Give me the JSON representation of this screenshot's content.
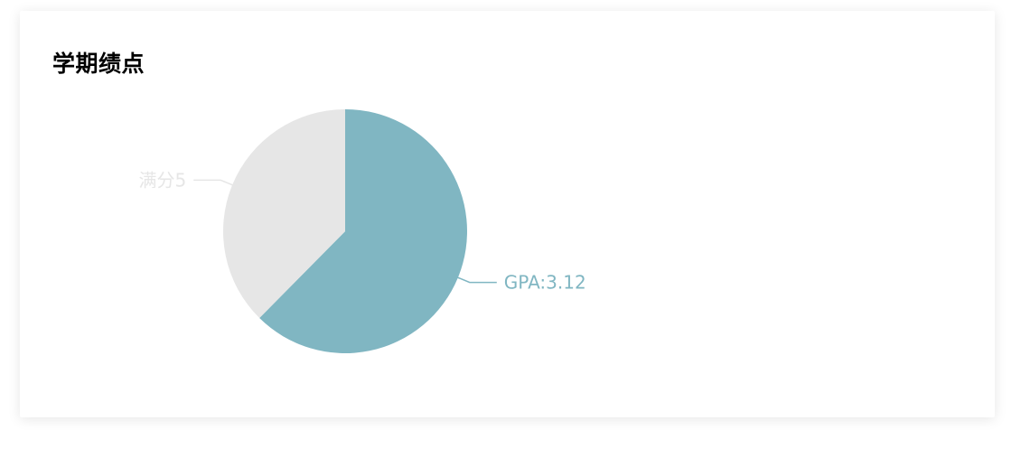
{
  "card": {
    "title": "学期绩点"
  },
  "chart_data": {
    "type": "pie",
    "title": "学期绩点",
    "slices": [
      {
        "label": "GPA:3.12",
        "value": 3.12,
        "color": "#80b6c2"
      },
      {
        "label": "满分5",
        "value": 1.88,
        "color": "#e6e6e6"
      }
    ],
    "legend": "none"
  }
}
